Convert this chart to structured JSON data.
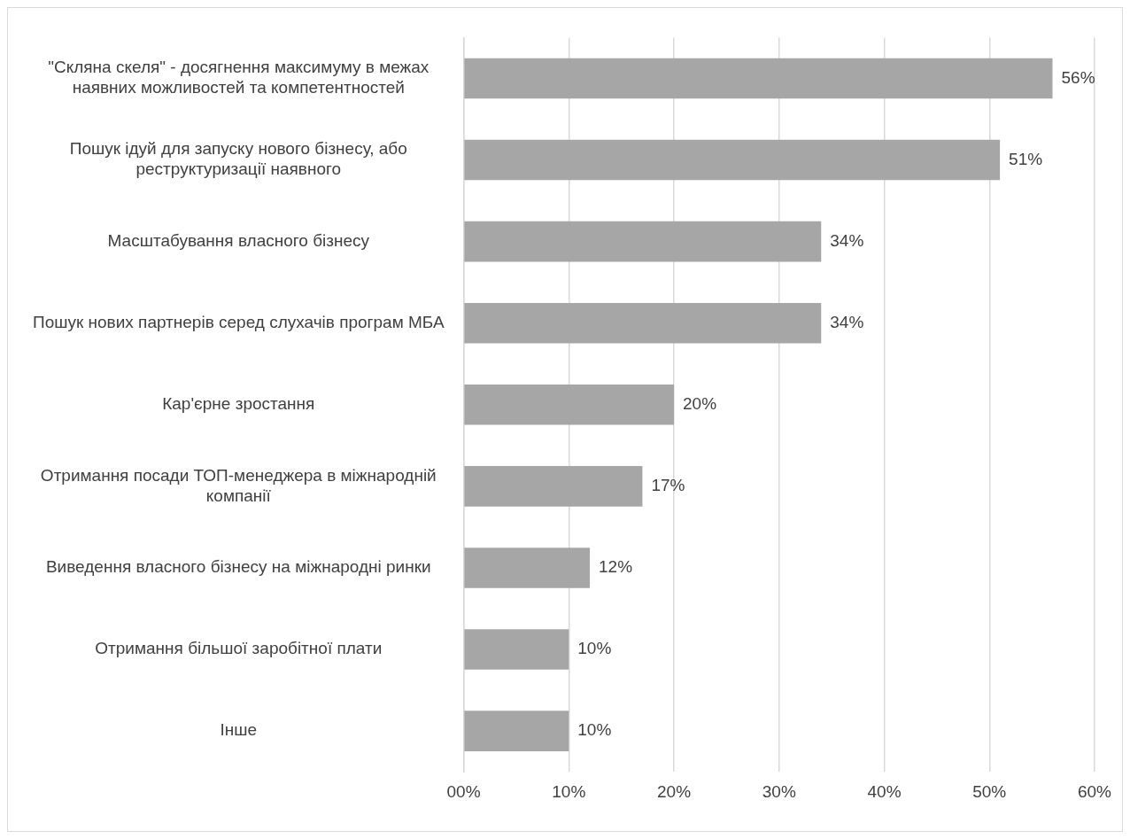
{
  "chart_data": {
    "type": "bar",
    "orientation": "horizontal",
    "categories": [
      "\"Скляна скеля\" - досягнення максимуму в межах наявних можливостей та компетентностей",
      "Пошук ідуй для запуску нового бізнесу, або реструктуризації наявного",
      "Масштабування власного бізнесу",
      "Пошук нових партнерів серед слухачів програм МБА",
      "Кар'єрне зростання",
      "Отримання посади ТОП-менеджера в міжнародній компанії",
      "Виведення власного бізнесу на міжнародні ринки",
      "Отримання більшої заробітної плати",
      "Інше"
    ],
    "values": [
      56,
      51,
      34,
      34,
      20,
      17,
      12,
      10,
      10
    ],
    "value_labels": [
      "56%",
      "51%",
      "34%",
      "34%",
      "20%",
      "17%",
      "12%",
      "10%",
      "10%"
    ],
    "color": "#a6a6a6",
    "xlim": [
      0,
      60
    ],
    "xticks": [
      {
        "value": 0,
        "label": "00%"
      },
      {
        "value": 10,
        "label": "10%"
      },
      {
        "value": 20,
        "label": "20%"
      },
      {
        "value": 30,
        "label": "30%"
      },
      {
        "value": 40,
        "label": "40%"
      },
      {
        "value": 50,
        "label": "50%"
      },
      {
        "value": 60,
        "label": "60%"
      }
    ],
    "grid": "x",
    "legend": false
  }
}
